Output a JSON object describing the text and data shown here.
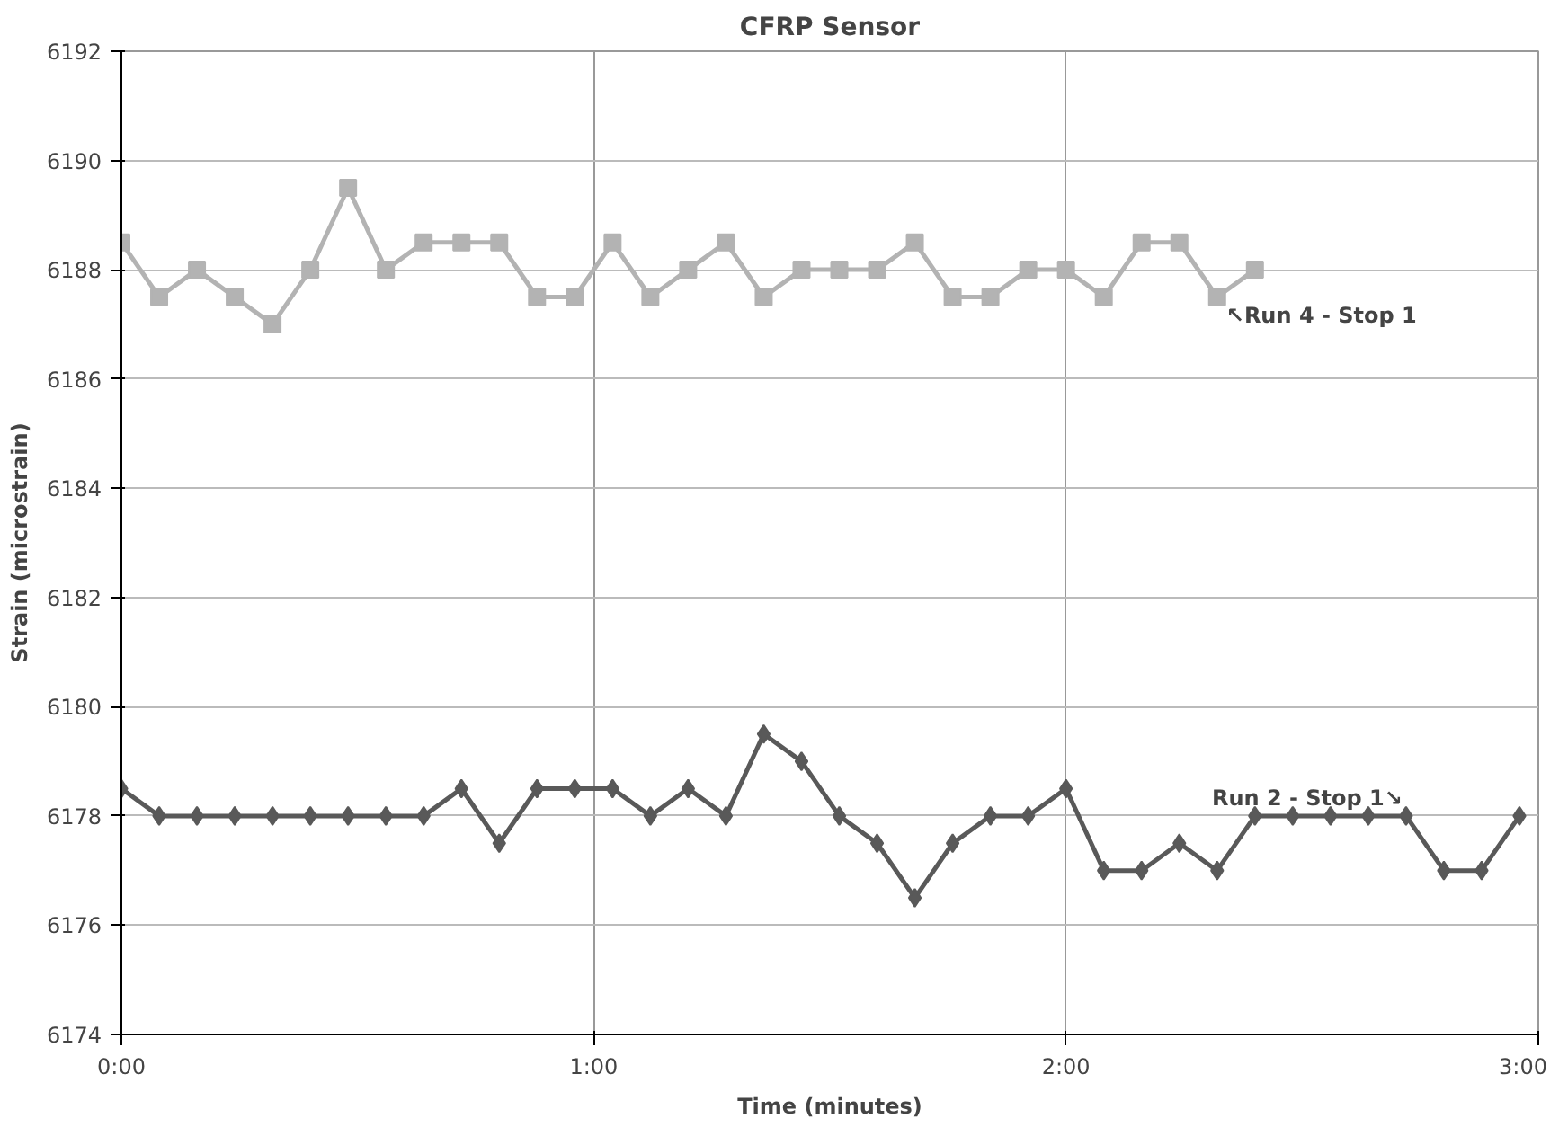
{
  "chart_data": {
    "type": "line",
    "title": "CFRP Sensor",
    "xlabel": "Time (minutes)",
    "ylabel": "Strain (microstrain)",
    "xlim": [
      0,
      3
    ],
    "xticks": [
      {
        "value": 0,
        "label": "0:00"
      },
      {
        "value": 1,
        "label": "1:00"
      },
      {
        "value": 2,
        "label": "2:00"
      },
      {
        "value": 3,
        "label": "3:00"
      }
    ],
    "ylim": [
      6174,
      6192
    ],
    "yticks": [
      6174,
      6176,
      6178,
      6180,
      6182,
      6184,
      6186,
      6188,
      6190,
      6192
    ],
    "grid": true,
    "line_style": "solid",
    "series": [
      {
        "color": "#b3b3b3",
        "marker": "square",
        "x": [
          0,
          0.08,
          0.16,
          0.24,
          0.32,
          0.4,
          0.48,
          0.56,
          0.64,
          0.72,
          0.8,
          0.88,
          0.96,
          1.04,
          1.12,
          1.2,
          1.28,
          1.36,
          1.44,
          1.52,
          1.6,
          1.68,
          1.76,
          1.84,
          1.92,
          2.0,
          2.08,
          2.16,
          2.24,
          2.32,
          2.4
        ],
        "values": [
          6188.5,
          6187.5,
          6188,
          6187.5,
          6187,
          6188,
          6189.5,
          6188,
          6188.5,
          6188.5,
          6188.5,
          6187.5,
          6187.5,
          6188.5,
          6187.5,
          6188,
          6188.5,
          6187.5,
          6188,
          6188,
          6188,
          6188.5,
          6187.5,
          6187.5,
          6188,
          6188,
          6187.5,
          6188.5,
          6188.5,
          6187.5,
          6188
        ]
      },
      {
        "color": "#595959",
        "marker": "diamond",
        "x": [
          0,
          0.08,
          0.16,
          0.24,
          0.32,
          0.4,
          0.48,
          0.56,
          0.64,
          0.72,
          0.8,
          0.88,
          0.96,
          1.04,
          1.12,
          1.2,
          1.28,
          1.36,
          1.44,
          1.52,
          1.6,
          1.68,
          1.76,
          1.84,
          1.92,
          2.0,
          2.08,
          2.16,
          2.24,
          2.32,
          2.4,
          2.48,
          2.56,
          2.64,
          2.72,
          2.8,
          2.88,
          2.96
        ],
        "values": [
          6178.5,
          6178,
          6178,
          6178,
          6178,
          6178,
          6178,
          6178,
          6178,
          6178.5,
          6177.5,
          6178.5,
          6178.5,
          6178.5,
          6178,
          6178.5,
          6178,
          6179.5,
          6179,
          6178,
          6177.5,
          6176.5,
          6177.5,
          6178,
          6178,
          6178.5,
          6177,
          6177,
          6177.5,
          6177,
          6178,
          6178,
          6178,
          6178,
          6178,
          6177,
          6177,
          6178
        ]
      }
    ],
    "annotations": [
      {
        "text": "↖Run 4 - Stop 1",
        "x": 2.32,
        "y": 6187.5
      },
      {
        "text": "Run 2 - Stop 1↘",
        "x": 2.72,
        "y": 6178
      }
    ]
  }
}
